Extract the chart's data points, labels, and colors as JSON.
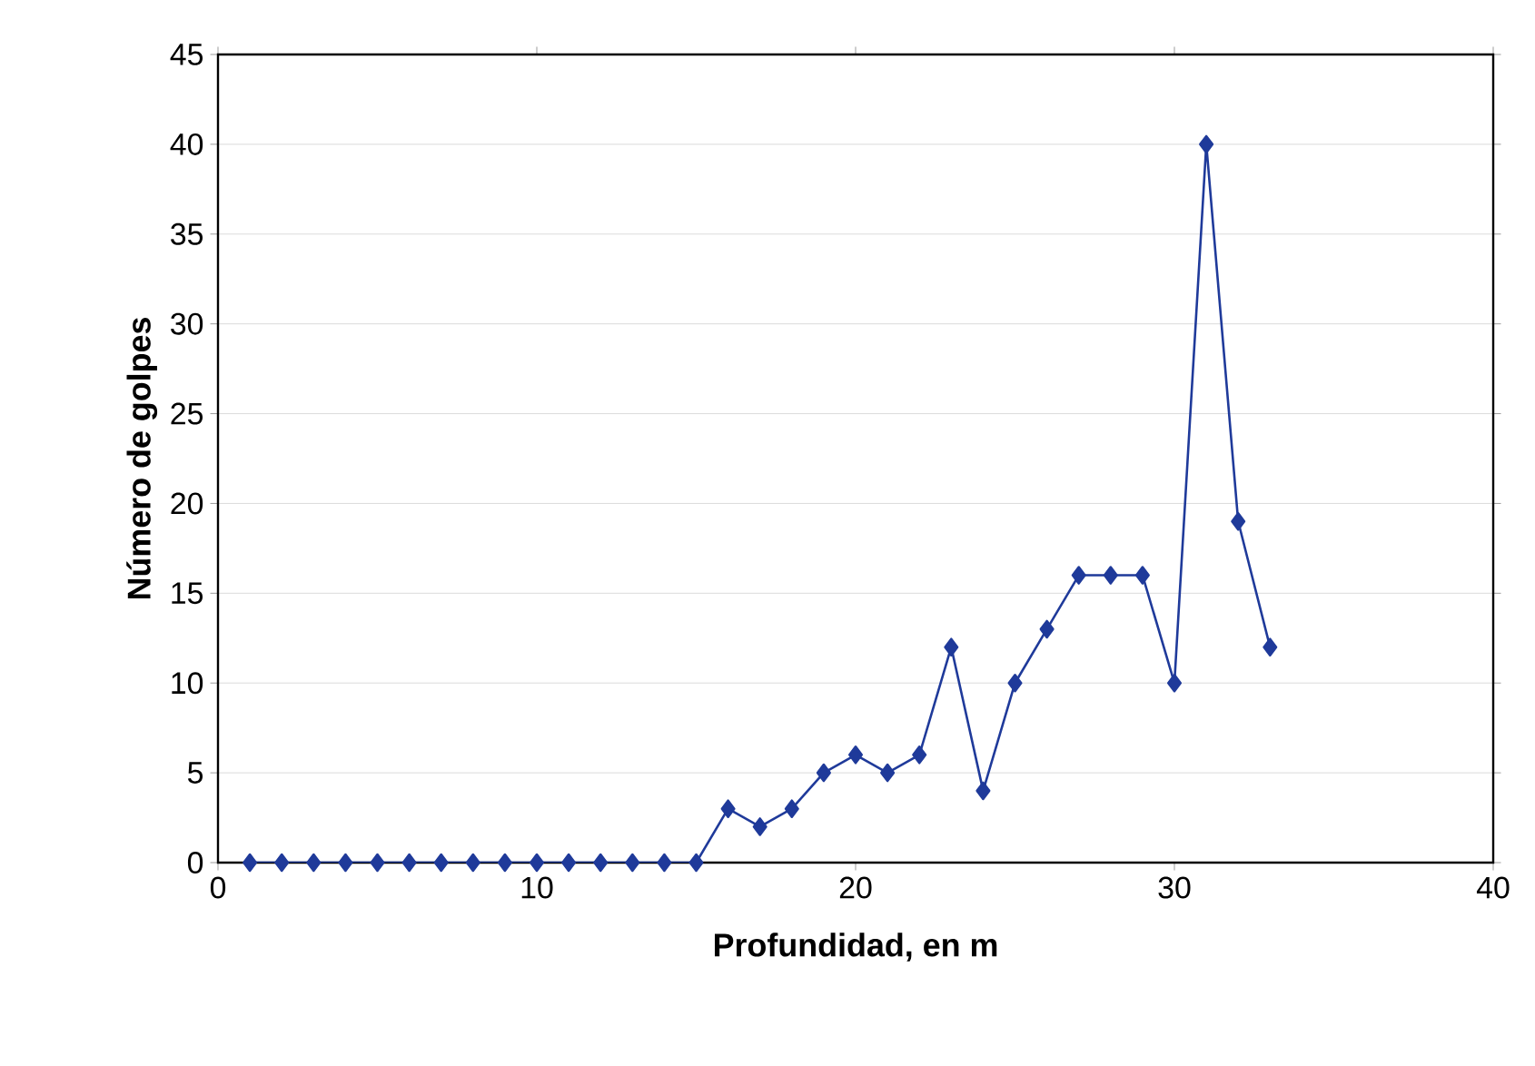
{
  "chart_data": {
    "type": "line",
    "xlabel": "Profundidad, en m",
    "ylabel": "Número de golpes",
    "x": [
      1,
      2,
      3,
      4,
      5,
      6,
      7,
      8,
      9,
      10,
      11,
      12,
      13,
      14,
      15,
      16,
      17,
      18,
      19,
      20,
      21,
      22,
      23,
      24,
      25,
      26,
      27,
      28,
      29,
      30,
      31,
      32,
      33
    ],
    "series": [
      {
        "color": "#1f3a9a",
        "values": [
          0,
          0,
          0,
          0,
          0,
          0,
          0,
          0,
          0,
          0,
          0,
          0,
          0,
          0,
          0,
          3,
          2,
          3,
          5,
          6,
          5,
          6,
          12,
          4,
          10,
          13,
          16,
          16,
          16,
          10,
          40,
          19,
          12
        ]
      }
    ],
    "xlim": [
      0,
      40
    ],
    "xticks": [
      0,
      10,
      20,
      30,
      40
    ],
    "ylim": [
      0,
      45
    ],
    "yticks": [
      0,
      5,
      10,
      15,
      20,
      25,
      30,
      35,
      40,
      45
    ],
    "grid": "y",
    "marker": "diamond",
    "line_style": "solid"
  }
}
